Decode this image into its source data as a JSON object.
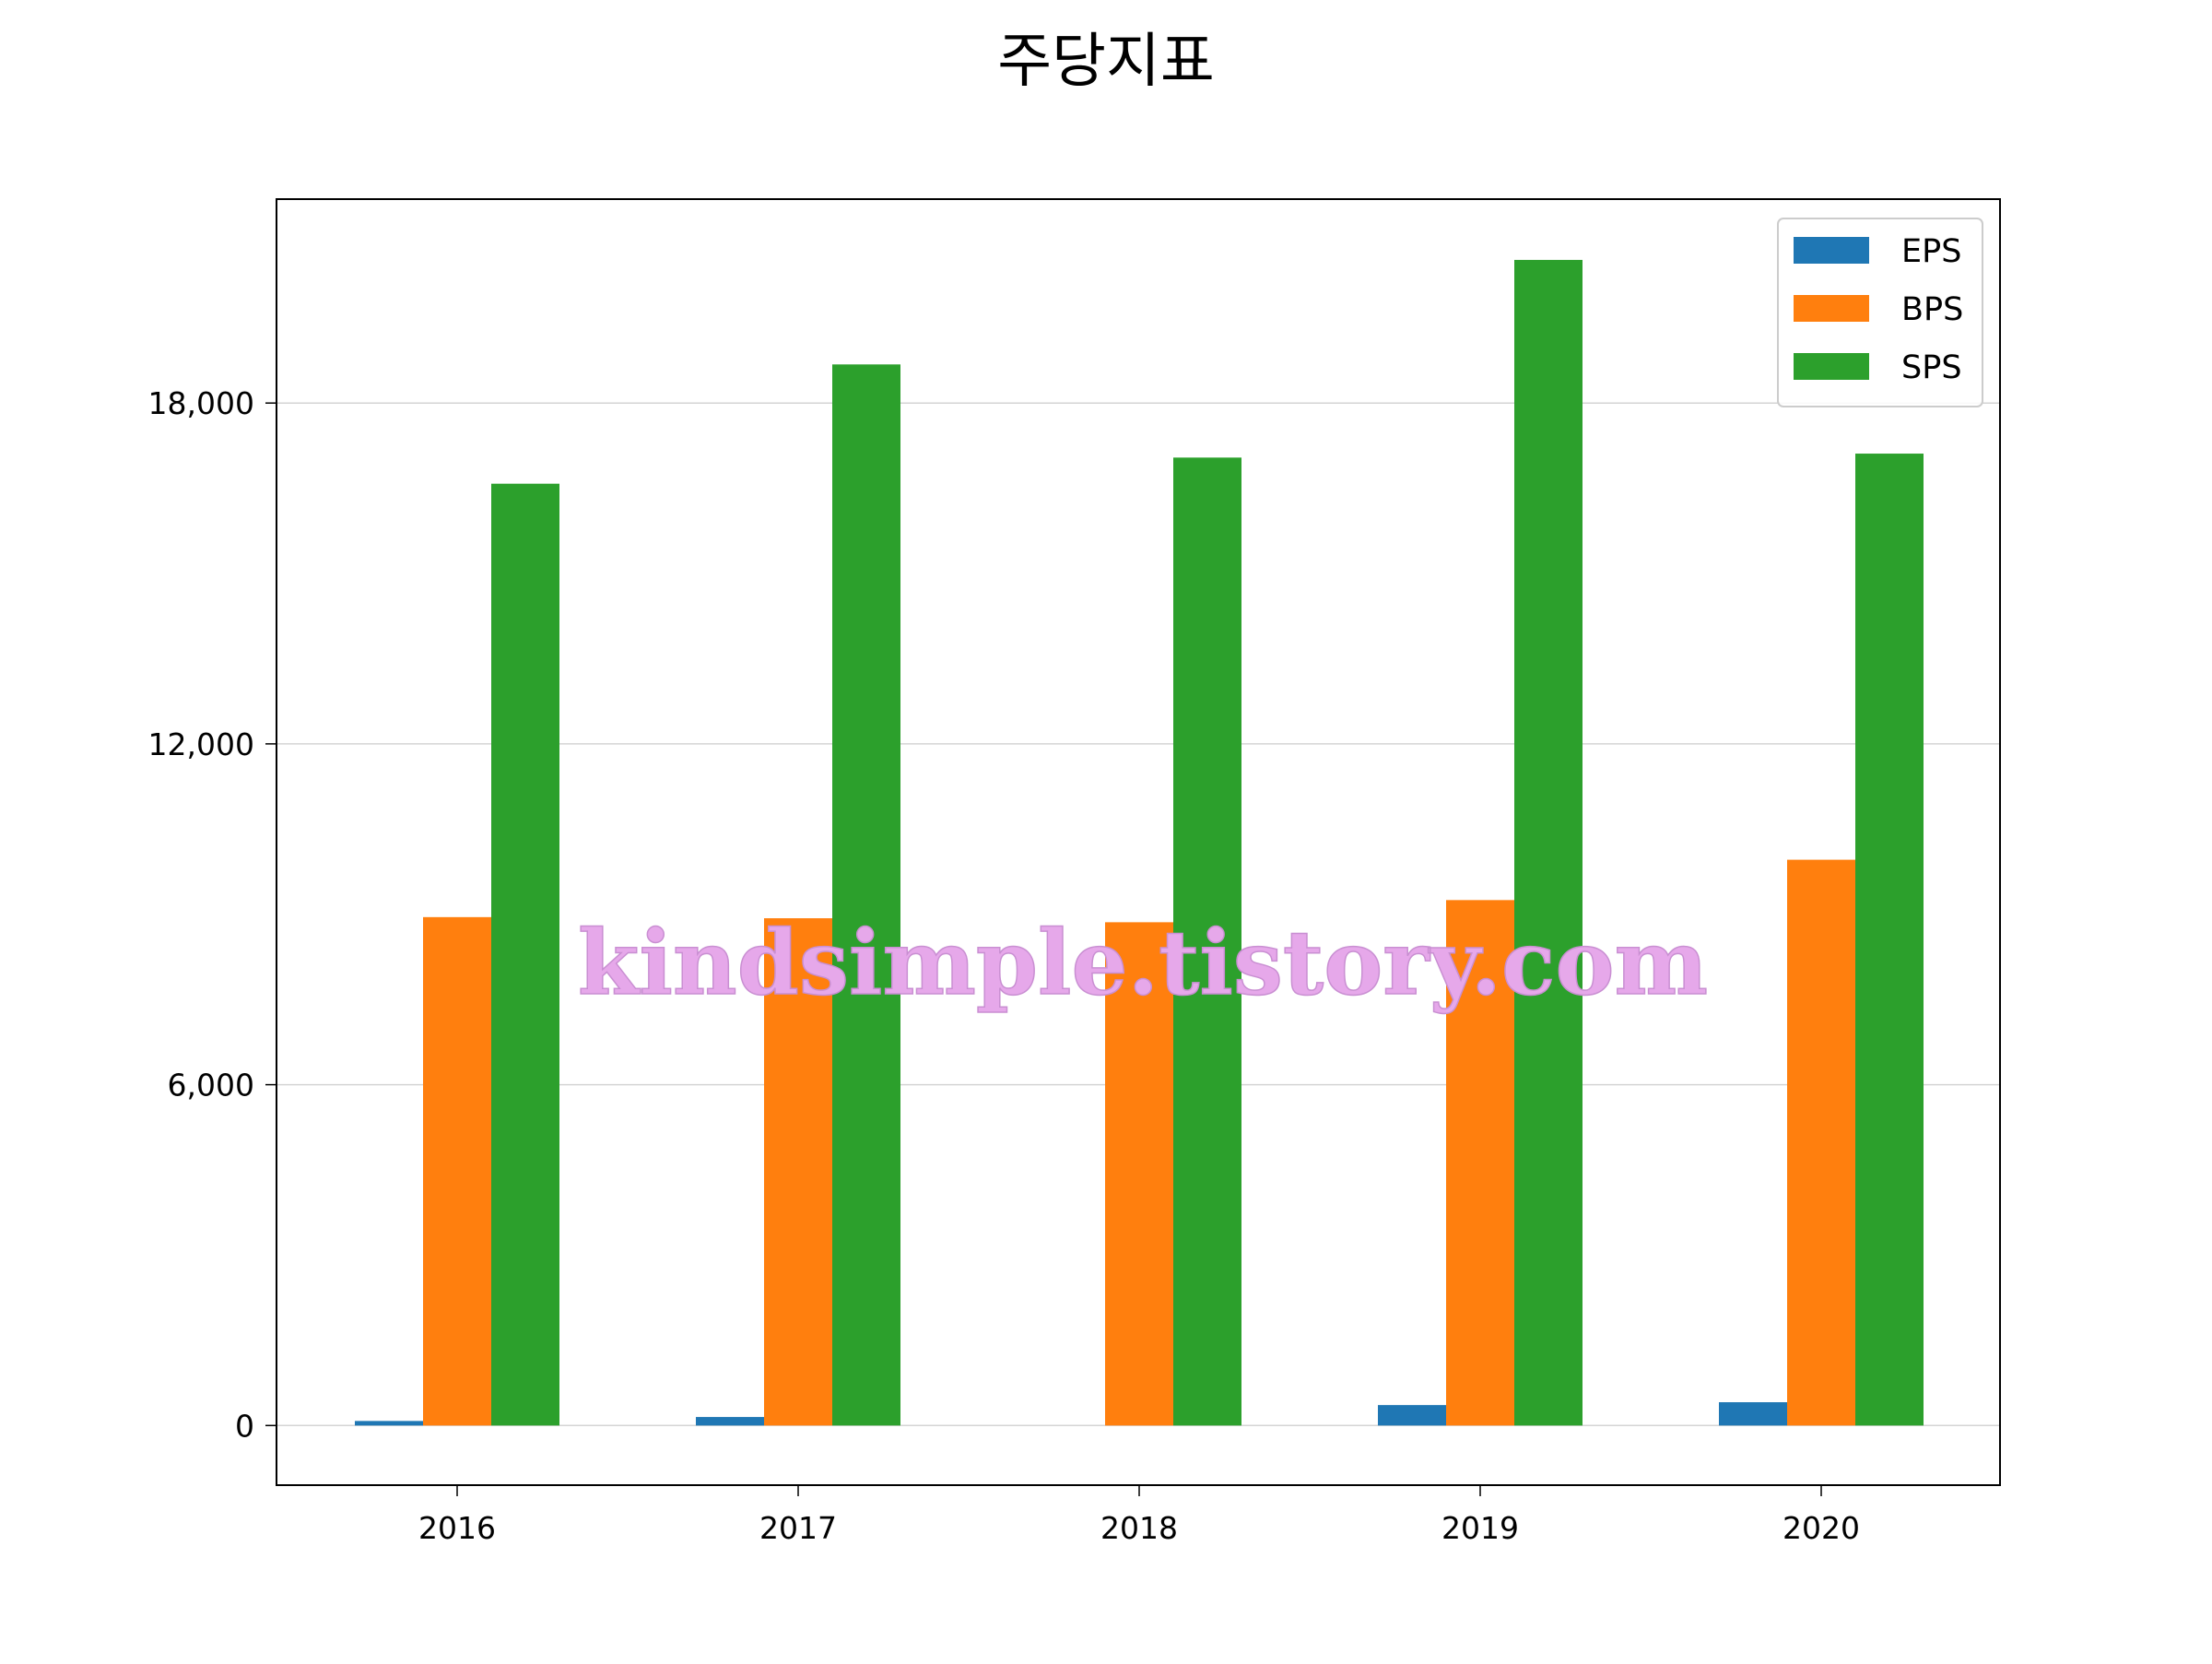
{
  "chart_data": {
    "type": "bar",
    "title": "주당지표",
    "xlabel": "",
    "ylabel": "",
    "categories": [
      "2016",
      "2017",
      "2018",
      "2019",
      "2020"
    ],
    "series": [
      {
        "name": "EPS",
        "color": "#1f77b4",
        "values": [
          80,
          150,
          0,
          360,
          410
        ]
      },
      {
        "name": "BPS",
        "color": "#ff7f0e",
        "values": [
          8950,
          8930,
          8860,
          9250,
          9960
        ]
      },
      {
        "name": "SPS",
        "color": "#2ca02c",
        "values": [
          16580,
          18680,
          17040,
          20520,
          17110
        ]
      }
    ],
    "ylim": [
      -1050,
      21590
    ],
    "yticks": [
      0,
      6000,
      12000,
      18000
    ],
    "ytick_labels": [
      "0",
      "6,000",
      "12,000",
      "18,000"
    ],
    "grid": "y",
    "legend_position": "top-right"
  },
  "watermark": "kindsimple.tistory.com"
}
